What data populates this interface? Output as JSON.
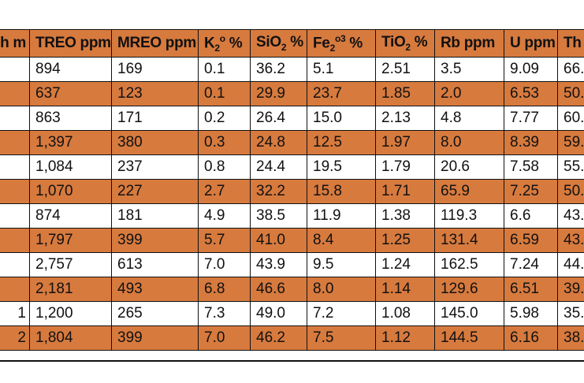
{
  "table": {
    "headers": [
      {
        "key": "depth",
        "text": "h m"
      },
      {
        "key": "treo",
        "text": "TREO ppm"
      },
      {
        "key": "mreo",
        "text": "MREO ppm"
      },
      {
        "key": "k2o",
        "base": "K",
        "sub": "2",
        "sup": "o",
        "tail": " %"
      },
      {
        "key": "sio2",
        "base": "SiO",
        "sub": "2",
        "tail": " %"
      },
      {
        "key": "fe2o3",
        "base": "Fe",
        "sub": "2",
        "mid": "o",
        "sup": "3",
        "tail": " %"
      },
      {
        "key": "tio2",
        "base": "TiO",
        "sub": "2",
        "tail": " %"
      },
      {
        "key": "rb",
        "text": "Rb ppm"
      },
      {
        "key": "u",
        "text": "U ppm"
      },
      {
        "key": "th",
        "text": "Th"
      }
    ],
    "rows": [
      [
        "",
        "894",
        "169",
        "0.1",
        "36.2",
        "5.1",
        "2.51",
        "3.5",
        "9.09",
        "66."
      ],
      [
        "",
        "637",
        "123",
        "0.1",
        "29.9",
        "23.7",
        "1.85",
        "2.0",
        "6.53",
        "50."
      ],
      [
        "",
        "863",
        "171",
        "0.2",
        "26.4",
        "15.0",
        "2.13",
        "4.8",
        "7.77",
        "60."
      ],
      [
        "",
        "1,397",
        "380",
        "0.3",
        "24.8",
        "12.5",
        "1.97",
        "8.0",
        "8.39",
        "59."
      ],
      [
        "",
        "1,084",
        "237",
        "0.8",
        "24.4",
        "19.5",
        "1.79",
        "20.6",
        "7.58",
        "55."
      ],
      [
        "",
        "1,070",
        "227",
        "2.7",
        "32.2",
        "15.8",
        "1.71",
        "65.9",
        "7.25",
        "50."
      ],
      [
        "",
        "874",
        "181",
        "4.9",
        "38.5",
        "11.9",
        "1.38",
        "119.3",
        "6.6",
        "43."
      ],
      [
        "",
        "1,797",
        "399",
        "5.7",
        "41.0",
        "8.4",
        "1.25",
        "131.4",
        "6.59",
        "43."
      ],
      [
        "",
        "2,757",
        "613",
        "7.0",
        "43.9",
        "9.5",
        "1.24",
        "162.5",
        "7.24",
        "44."
      ],
      [
        "",
        "2,181",
        "493",
        "6.8",
        "46.6",
        "8.0",
        "1.14",
        "129.6",
        "6.51",
        "39."
      ],
      [
        "1",
        "1,200",
        "265",
        "7.3",
        "49.0",
        "7.2",
        "1.08",
        "145.0",
        "5.98",
        "35."
      ],
      [
        "2",
        "1,804",
        "399",
        "7.0",
        "46.2",
        "7.5",
        "1.12",
        "144.5",
        "6.16",
        "38."
      ]
    ]
  },
  "colors": {
    "header_bg": "#d77a3e",
    "stripe_bg": "#d77a3e",
    "row_bg": "#ffffff",
    "border": "#111111"
  }
}
